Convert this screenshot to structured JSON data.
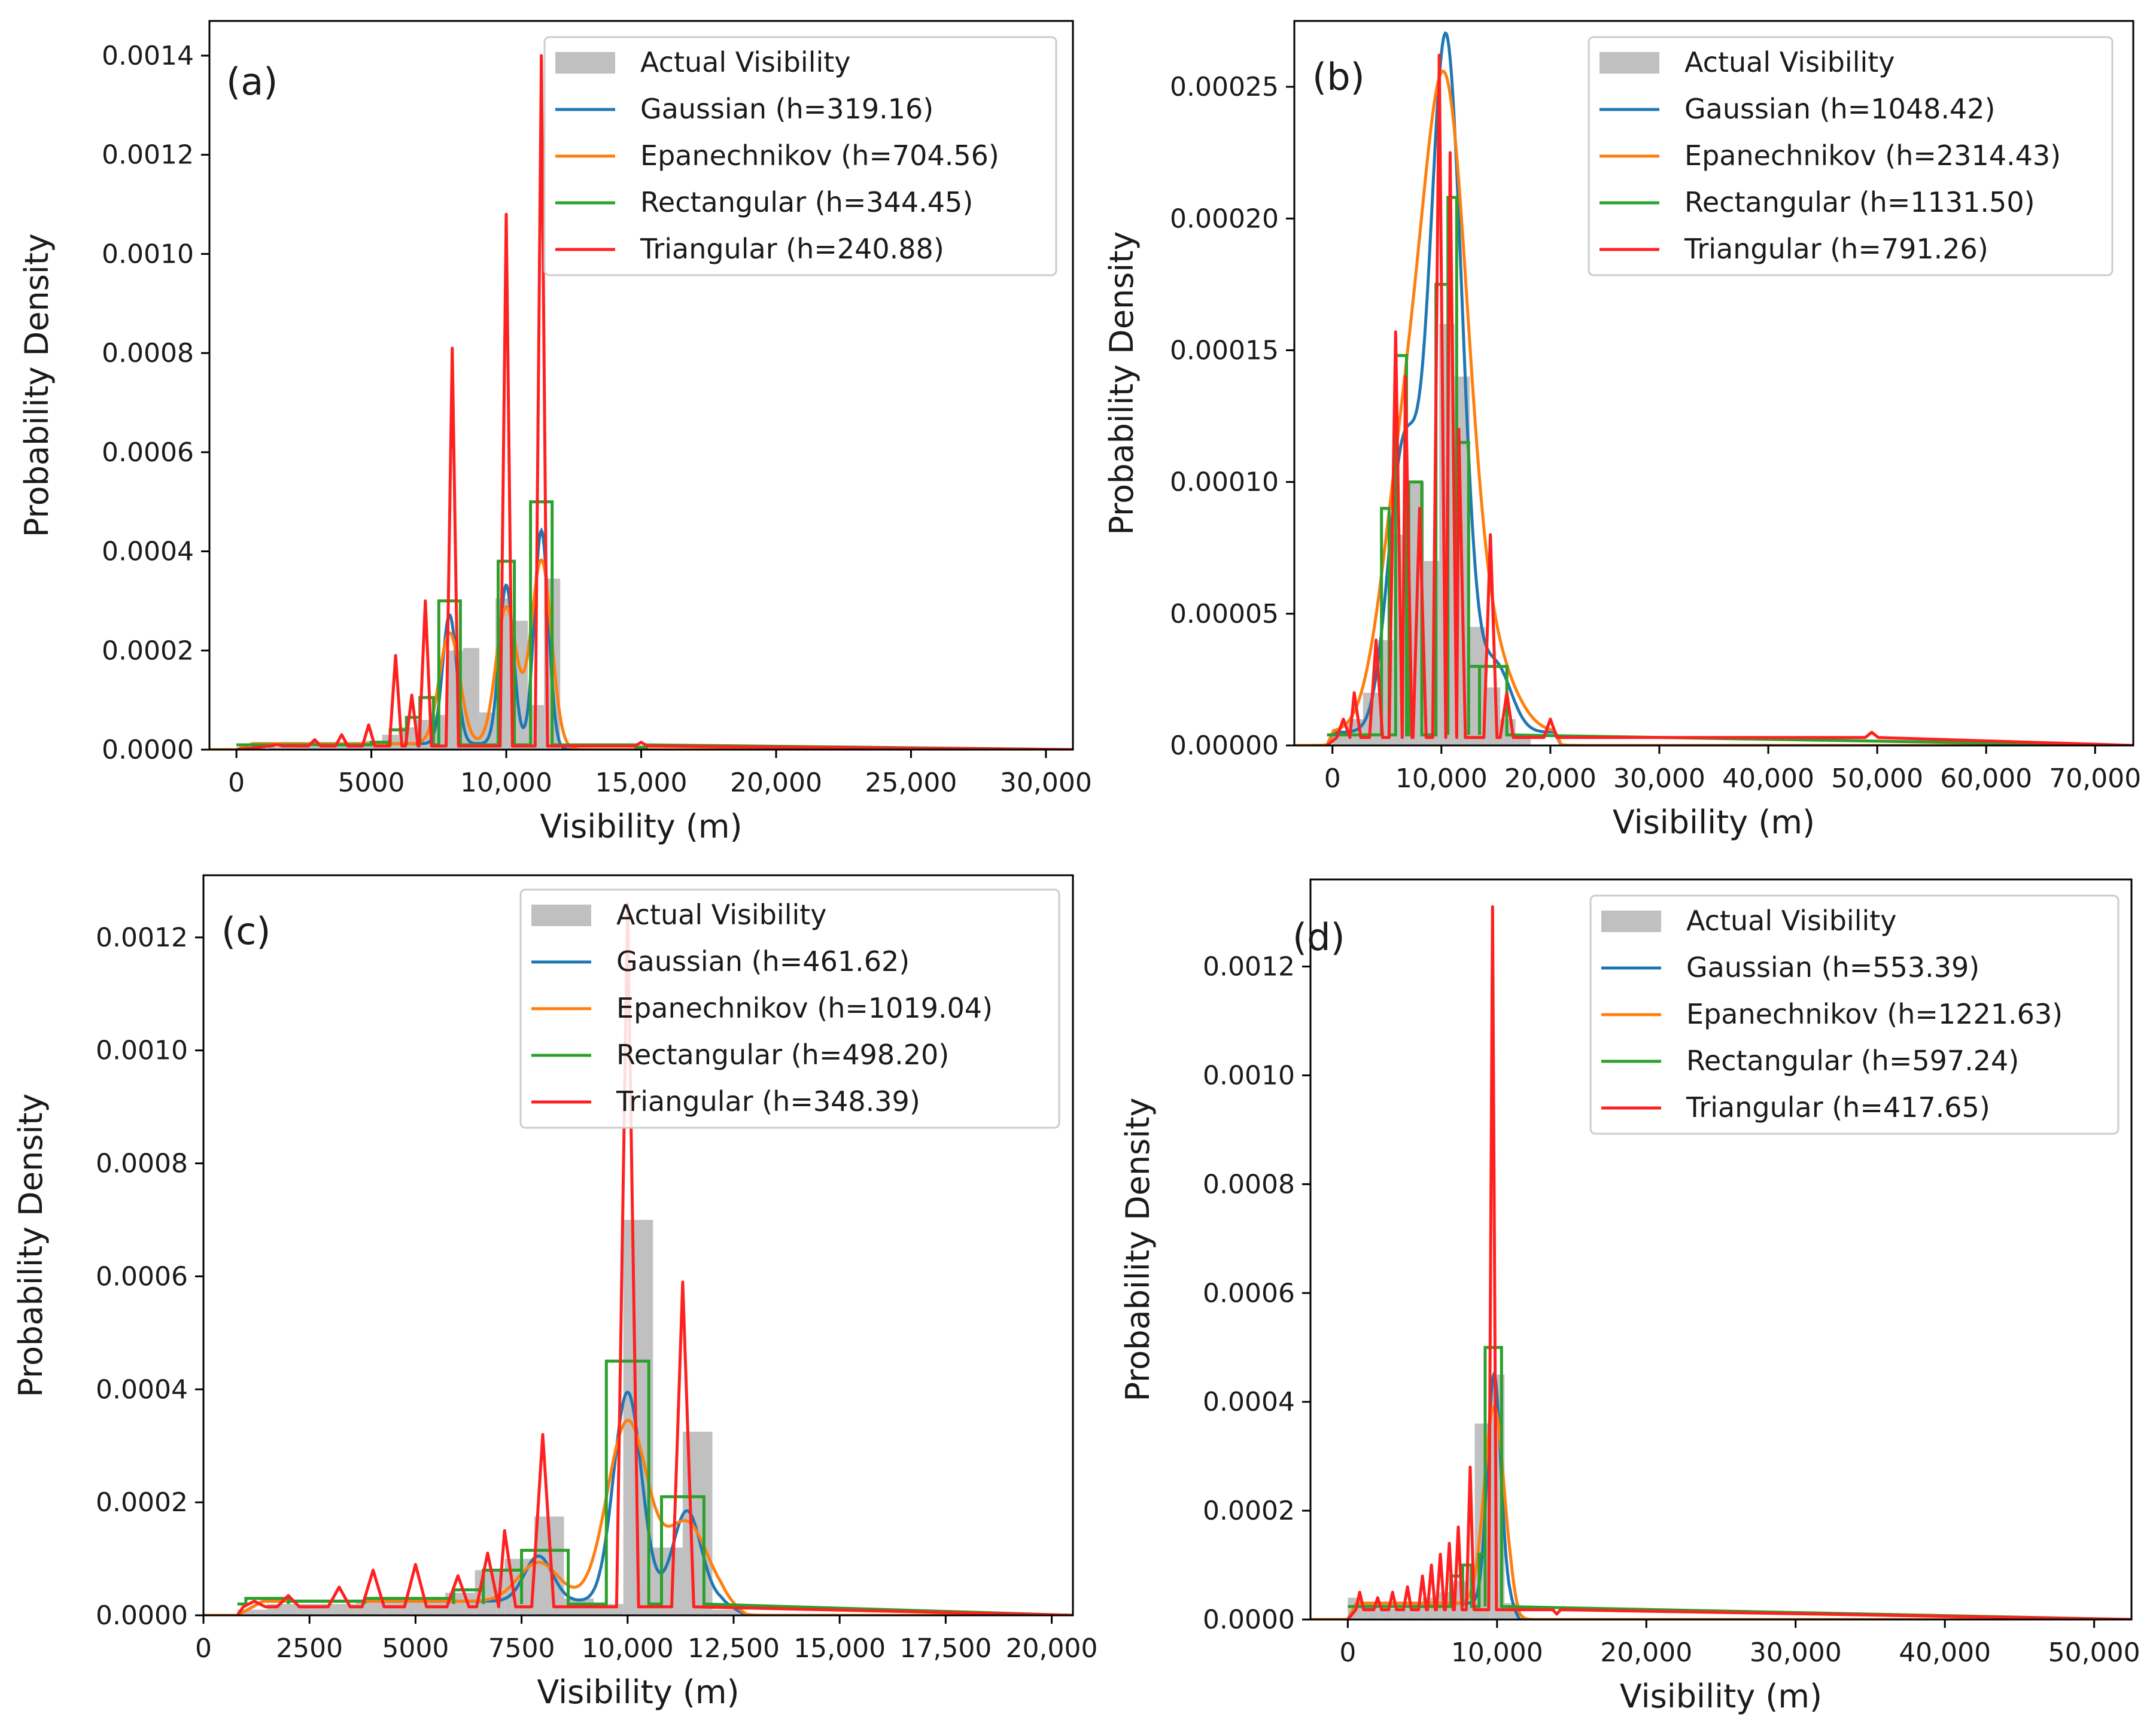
{
  "legend_label": "Actual Visibility",
  "colors": {
    "hist": "#c0c0c0",
    "gaussian": "#1f77b4",
    "epanechnikov": "#ff7f0e",
    "rectangular": "#2ca02c",
    "triangular": "#ff2020",
    "axes": "#000000"
  },
  "chart_data": [
    {
      "type": "bar",
      "panel_label": "(a)",
      "xlabel": "Visibility (m)",
      "ylabel": "Probability Density",
      "xlim": [
        -1000,
        31000
      ],
      "ylim": [
        0,
        0.00147
      ],
      "xticks": [
        0,
        5000,
        10000,
        15000,
        20000,
        25000,
        30000
      ],
      "xtick_labels": [
        "0",
        "5000",
        "10,000",
        "15,000",
        "20,000",
        "25,000",
        "30,000"
      ],
      "yticks": [
        0,
        0.0002,
        0.0004,
        0.0006,
        0.0008,
        0.001,
        0.0012,
        0.0014
      ],
      "ytick_labels": [
        "0.0000",
        "0.0002",
        "0.0004",
        "0.0006",
        "0.0008",
        "0.0010",
        "0.0012",
        "0.0014"
      ],
      "series": [
        {
          "name": "Gaussian (h=319.16)",
          "key": "gaussian"
        },
        {
          "name": "Epanechnikov (h=704.56)",
          "key": "epanechnikov"
        },
        {
          "name": "Rectangular (h=344.45)",
          "key": "rectangular"
        },
        {
          "name": "Triangular (h=240.88)",
          "key": "triangular"
        }
      ],
      "bin_width": 600,
      "hist": [
        [
          0,
          0
        ],
        [
          600,
          2e-06
        ],
        [
          1200,
          5e-06
        ],
        [
          1800,
          4e-06
        ],
        [
          2400,
          6e-06
        ],
        [
          3000,
          8e-06
        ],
        [
          3600,
          1e-05
        ],
        [
          4200,
          1.2e-05
        ],
        [
          4800,
          1.8e-05
        ],
        [
          5400,
          3e-05
        ],
        [
          6000,
          4.5e-05
        ],
        [
          6600,
          6e-05
        ],
        [
          7200,
          7e-05
        ],
        [
          7800,
          0.0002
        ],
        [
          8400,
          0.000205
        ],
        [
          9000,
          7.5e-05
        ],
        [
          9600,
          0.000305
        ],
        [
          10200,
          0.00026
        ],
        [
          10800,
          9e-05
        ],
        [
          11400,
          0.000345
        ],
        [
          12000,
          2e-06
        ],
        [
          15000,
          2e-06
        ]
      ],
      "peaks": [
        [
          7900,
          0.00026
        ],
        [
          10000,
          0.00032
        ],
        [
          11300,
          0.00043
        ]
      ],
      "peak_sigma": 260,
      "base_from": 0,
      "base_to": 12000,
      "base_level": 1.2e-05,
      "rect_boxes": [
        [
          5000,
          5600,
          1.5e-05
        ],
        [
          5700,
          6300,
          4e-05
        ],
        [
          6300,
          6800,
          6.5e-05
        ],
        [
          6800,
          7300,
          0.000105
        ],
        [
          7500,
          8300,
          0.0003
        ],
        [
          9700,
          10300,
          0.00038
        ],
        [
          10900,
          11700,
          0.0005
        ],
        [
          14800,
          15200,
          5e-06
        ]
      ],
      "tri_spikes": [
        [
          1500,
          1e-05
        ],
        [
          2900,
          2e-05
        ],
        [
          3900,
          3e-05
        ],
        [
          4900,
          5e-05
        ],
        [
          5900,
          0.00019
        ],
        [
          6500,
          0.00011
        ],
        [
          7000,
          0.0003
        ],
        [
          8000,
          0.00081
        ],
        [
          10000,
          0.00108
        ],
        [
          11300,
          0.0014
        ],
        [
          15000,
          1.5e-05
        ]
      ],
      "tri_width": 230
    },
    {
      "type": "bar",
      "panel_label": "(b)",
      "xlabel": "Visibility (m)",
      "ylabel": "Probability Density",
      "xlim": [
        -3500,
        73500
      ],
      "ylim": [
        0,
        0.000275
      ],
      "xticks": [
        0,
        10000,
        20000,
        30000,
        40000,
        50000,
        60000,
        70000
      ],
      "xtick_labels": [
        "0",
        "10,000",
        "20,000",
        "30,000",
        "40,000",
        "50,000",
        "60,000",
        "70,000"
      ],
      "yticks": [
        0,
        5e-05,
        0.0001,
        0.00015,
        0.0002,
        0.00025
      ],
      "ytick_labels": [
        "0.00000",
        "0.00005",
        "0.00010",
        "0.00015",
        "0.00020",
        "0.00025"
      ],
      "series": [
        {
          "name": "Gaussian (h=1048.42)",
          "key": "gaussian"
        },
        {
          "name": "Epanechnikov (h=2314.43)",
          "key": "epanechnikov"
        },
        {
          "name": "Rectangular (h=1131.50)",
          "key": "rectangular"
        },
        {
          "name": "Triangular (h=791.26)",
          "key": "triangular"
        }
      ],
      "bin_width": 1400,
      "hist": [
        [
          0,
          5e-06
        ],
        [
          1400,
          1e-05
        ],
        [
          2800,
          2e-05
        ],
        [
          4200,
          4e-05
        ],
        [
          5600,
          8e-05
        ],
        [
          7000,
          0.0001
        ],
        [
          8400,
          7e-05
        ],
        [
          9800,
          0.00016
        ],
        [
          11200,
          0.00014
        ],
        [
          12600,
          4.5e-05
        ],
        [
          14000,
          2.2e-05
        ],
        [
          15400,
          1e-05
        ],
        [
          16800,
          3e-06
        ]
      ],
      "peaks": [
        [
          6500,
          0.000105
        ],
        [
          10000,
          0.00016
        ],
        [
          11000,
          0.00012
        ],
        [
          15000,
          2.5e-05
        ]
      ],
      "peak_sigma": 1400,
      "base_from": -500,
      "base_to": 21000,
      "base_level": 5e-06,
      "rect_boxes": [
        [
          4500,
          5200,
          9e-05
        ],
        [
          5800,
          6800,
          0.000148
        ],
        [
          7000,
          8200,
          0.0001
        ],
        [
          9500,
          10600,
          0.000175
        ],
        [
          10600,
          11400,
          0.000208
        ],
        [
          11400,
          12500,
          0.000115
        ],
        [
          12500,
          13500,
          3e-05
        ],
        [
          13500,
          16000,
          3e-05
        ]
      ],
      "tri_spikes": [
        [
          1000,
          1e-05
        ],
        [
          2000,
          2e-05
        ],
        [
          4000,
          4e-05
        ],
        [
          5800,
          0.000157
        ],
        [
          6700,
          0.00014
        ],
        [
          8000,
          9e-05
        ],
        [
          9800,
          0.000262
        ],
        [
          10800,
          0.000225
        ],
        [
          11600,
          0.00012
        ],
        [
          14500,
          8e-05
        ],
        [
          16000,
          2e-05
        ],
        [
          20000,
          1e-05
        ],
        [
          49500,
          5e-06
        ]
      ],
      "tri_width": 600
    },
    {
      "type": "bar",
      "panel_label": "(c)",
      "xlabel": "Visibility (m)",
      "ylabel": "Probability Density",
      "xlim": [
        0,
        20500
      ],
      "ylim": [
        0,
        0.00131
      ],
      "xticks": [
        0,
        2500,
        5000,
        7500,
        10000,
        12500,
        15000,
        17500,
        20000
      ],
      "xtick_labels": [
        "0",
        "2500",
        "5000",
        "7500",
        "10,000",
        "12,500",
        "15,000",
        "17,500",
        "20,000"
      ],
      "yticks": [
        0,
        0.0002,
        0.0004,
        0.0006,
        0.0008,
        0.001,
        0.0012
      ],
      "ytick_labels": [
        "0.0000",
        "0.0002",
        "0.0004",
        "0.0006",
        "0.0008",
        "0.0010",
        "0.0012"
      ],
      "series": [
        {
          "name": "Gaussian (h=461.62)",
          "key": "gaussian"
        },
        {
          "name": "Epanechnikov (h=1019.04)",
          "key": "epanechnikov"
        },
        {
          "name": "Rectangular (h=498.20)",
          "key": "rectangular"
        },
        {
          "name": "Triangular (h=348.39)",
          "key": "triangular"
        }
      ],
      "bin_width": 700,
      "hist": [
        [
          800,
          1e-05
        ],
        [
          1500,
          2e-05
        ],
        [
          2200,
          2e-05
        ],
        [
          2900,
          2e-05
        ],
        [
          3600,
          2.5e-05
        ],
        [
          4300,
          2.5e-05
        ],
        [
          5000,
          3e-05
        ],
        [
          5700,
          4e-05
        ],
        [
          6400,
          8e-05
        ],
        [
          7100,
          0.0001
        ],
        [
          7800,
          0.000175
        ],
        [
          8500,
          3e-05
        ],
        [
          9200,
          2e-05
        ],
        [
          9900,
          0.0007
        ],
        [
          10600,
          0.00012
        ],
        [
          11300,
          0.000325
        ],
        [
          12000,
          1e-05
        ]
      ],
      "peaks": [
        [
          10000,
          0.00037
        ],
        [
          11400,
          0.00016
        ],
        [
          7900,
          8e-05
        ]
      ],
      "peak_sigma": 330,
      "base_from": 800,
      "base_to": 12800,
      "base_level": 2.5e-05,
      "rect_boxes": [
        [
          1000,
          2000,
          3e-05
        ],
        [
          2000,
          3800,
          2.5e-05
        ],
        [
          3800,
          5900,
          3e-05
        ],
        [
          5900,
          6600,
          4.5e-05
        ],
        [
          6600,
          7500,
          8e-05
        ],
        [
          7500,
          8600,
          0.000115
        ],
        [
          9500,
          10500,
          0.00045
        ],
        [
          10800,
          11800,
          0.00021
        ]
      ],
      "tri_spikes": [
        [
          1200,
          2.5e-05
        ],
        [
          2000,
          3.5e-05
        ],
        [
          3200,
          5e-05
        ],
        [
          4000,
          8e-05
        ],
        [
          5000,
          9e-05
        ],
        [
          6000,
          7e-05
        ],
        [
          6700,
          0.00011
        ],
        [
          7100,
          0.00015
        ],
        [
          8000,
          0.00032
        ],
        [
          10000,
          0.00126
        ],
        [
          11300,
          0.00059
        ]
      ],
      "tri_width": 260
    },
    {
      "type": "bar",
      "panel_label": "(d)",
      "xlabel": "Visibility (m)",
      "ylabel": "Probability Density",
      "xlim": [
        -2500,
        52500
      ],
      "ylim": [
        0,
        0.00136
      ],
      "xticks": [
        0,
        10000,
        20000,
        30000,
        40000,
        50000
      ],
      "xtick_labels": [
        "0",
        "10,000",
        "20,000",
        "30,000",
        "40,000",
        "50,000"
      ],
      "yticks": [
        0,
        0.0002,
        0.0004,
        0.0006,
        0.0008,
        0.001,
        0.0012
      ],
      "ytick_labels": [
        "0.0000",
        "0.0002",
        "0.0004",
        "0.0006",
        "0.0008",
        "0.0010",
        "0.0012"
      ],
      "series": [
        {
          "name": "Gaussian (h=553.39)",
          "key": "gaussian"
        },
        {
          "name": "Epanechnikov (h=1221.63)",
          "key": "epanechnikov"
        },
        {
          "name": "Rectangular (h=597.24)",
          "key": "rectangular"
        },
        {
          "name": "Triangular (h=417.65)",
          "key": "triangular"
        }
      ],
      "bin_width": 1000,
      "hist": [
        [
          0,
          4e-05
        ],
        [
          1000,
          3e-05
        ],
        [
          2000,
          2e-05
        ],
        [
          3000,
          2e-05
        ],
        [
          4000,
          3e-05
        ],
        [
          5000,
          4e-05
        ],
        [
          6000,
          5e-05
        ],
        [
          7000,
          7e-05
        ],
        [
          8000,
          0.0001
        ],
        [
          8500,
          0.00036
        ],
        [
          9500,
          0.00045
        ],
        [
          10500,
          3e-05
        ]
      ],
      "peaks": [
        [
          9800,
          0.00042
        ]
      ],
      "peak_sigma": 450,
      "base_from": 0,
      "base_to": 11500,
      "base_level": 3e-05,
      "rect_boxes": [
        [
          6900,
          7700,
          8e-05
        ],
        [
          7700,
          8300,
          0.0001
        ],
        [
          8800,
          9200,
          0.00012
        ],
        [
          9200,
          10300,
          0.0005
        ]
      ],
      "tri_spikes": [
        [
          800,
          5e-05
        ],
        [
          2000,
          4e-05
        ],
        [
          3000,
          5e-05
        ],
        [
          4000,
          6e-05
        ],
        [
          5000,
          8e-05
        ],
        [
          5600,
          0.0001
        ],
        [
          6200,
          0.00012
        ],
        [
          6800,
          0.00014
        ],
        [
          7400,
          0.00017
        ],
        [
          8200,
          0.00028
        ],
        [
          9700,
          0.00131
        ],
        [
          14000,
          1e-05
        ]
      ],
      "tri_width": 260
    }
  ]
}
